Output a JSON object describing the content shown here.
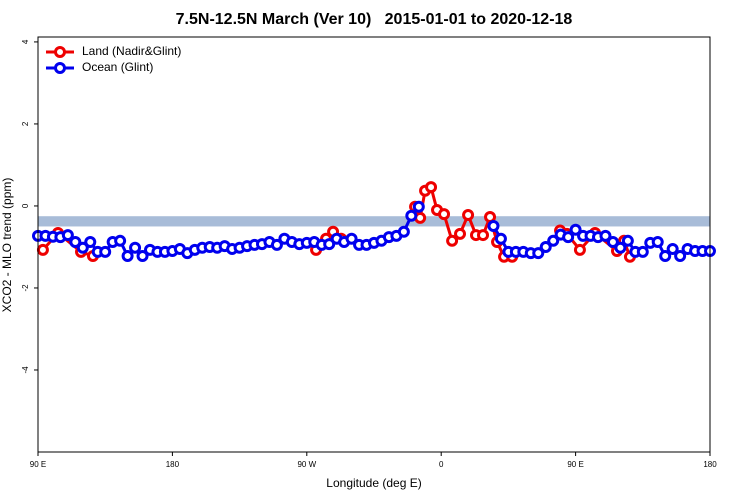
{
  "chart_data": {
    "type": "line",
    "title": "7.5N-12.5N March (Ver 10)   2015-01-01 to 2020-12-18",
    "x_label": "Longitude (deg E)",
    "y_label": "XCO2 - MLO trend (ppm)",
    "xlim": [
      90,
      540
    ],
    "xticks": [
      {
        "value": 90,
        "label": "90 E"
      },
      {
        "value": 180,
        "label": "180"
      },
      {
        "value": 270,
        "label": "90 W"
      },
      {
        "value": 360,
        "label": "0"
      },
      {
        "value": 450,
        "label": "90 E"
      },
      {
        "value": 540,
        "label": "180"
      }
    ],
    "ylim": [
      -6,
      4.12
    ],
    "yticks": [
      4,
      2,
      0,
      -2,
      -4
    ],
    "band": {
      "y": [
        -0.5,
        -0.25
      ],
      "color": "#a8bcd8"
    },
    "legend": "top-left",
    "series": [
      {
        "name": "Land (Nadir&Glint)",
        "color": "#ee0000",
        "x": [
          93.3,
          103.4,
          118.8,
          126.8,
          null,
          276.2,
          282.9,
          287.6,
          293,
          null,
          342.5,
          345.9,
          349.2,
          353.2,
          357.2,
          361.9,
          367.3,
          372.6,
          378,
          383.3,
          388,
          392.7,
          397.4,
          402.1,
          407.5,
          null,
          439.6,
          444.2,
          452.9,
          463,
          477.7,
          482.4,
          486.4
        ],
        "values": [
          -1.07,
          -0.66,
          -1.12,
          -1.22,
          null,
          -1.07,
          -0.8,
          -0.63,
          -0.8,
          null,
          -0.02,
          -0.29,
          0.37,
          0.46,
          -0.1,
          -0.2,
          -0.85,
          -0.68,
          -0.22,
          -0.71,
          -0.71,
          -0.27,
          -0.88,
          -1.24,
          -1.24,
          null,
          -0.6,
          -0.68,
          -1.07,
          -0.66,
          -1.1,
          -0.85,
          -1.24
        ]
      },
      {
        "name": "Ocean (Glint)",
        "color": "#0000ee",
        "x": [
          90,
          95,
          100,
          105,
          110,
          115,
          120,
          125,
          130,
          135,
          140,
          145,
          150,
          155,
          160,
          165,
          170,
          175,
          180,
          185,
          190,
          195,
          200,
          205,
          210,
          215,
          220,
          225,
          230,
          235,
          240,
          245,
          250,
          255,
          260,
          265,
          270,
          275,
          280,
          285,
          290,
          295,
          300,
          305,
          310,
          315,
          320,
          325,
          330,
          335,
          340,
          345,
          350,
          355,
          360,
          365,
          370,
          375,
          380,
          385,
          390,
          395,
          400,
          405,
          410,
          415,
          420,
          425,
          430,
          435,
          440,
          445,
          450,
          455,
          460,
          465,
          470,
          475,
          480,
          485,
          490,
          495,
          500,
          505,
          510,
          515,
          520,
          525,
          530,
          535,
          540
        ],
        "values": [
          -0.73,
          -0.73,
          -0.75,
          -0.76,
          -0.71,
          -0.88,
          -1.02,
          -0.88,
          -1.12,
          -1.12,
          -0.88,
          -0.85,
          -1.22,
          -1.02,
          -1.22,
          -1.07,
          -1.12,
          -1.12,
          -1.1,
          -1.05,
          -1.15,
          -1.07,
          -1.02,
          -1.0,
          -1.02,
          -0.98,
          -1.05,
          -1.02,
          -0.98,
          -0.95,
          -0.93,
          -0.88,
          -0.95,
          -0.8,
          -0.88,
          -0.93,
          -0.9,
          -0.88,
          -0.95,
          -0.93,
          -0.8,
          -0.88,
          -0.8,
          -0.95,
          -0.95,
          -0.9,
          -0.85,
          -0.76,
          -0.73,
          -0.63,
          -0.24,
          -0.02,
          null,
          null,
          null,
          null,
          null,
          null,
          null,
          null,
          null,
          -0.49,
          -0.8,
          -1.12,
          -1.12,
          -1.12,
          -1.15,
          -1.15,
          -1.0,
          -0.85,
          -0.7,
          -0.76,
          -0.58,
          -0.73,
          -0.73,
          -0.76,
          -0.73,
          -0.88,
          -1.02,
          -0.85,
          -1.12,
          -1.12,
          -0.9,
          -0.88,
          -1.22,
          -1.05,
          -1.22,
          -1.05,
          -1.1,
          -1.1,
          -1.1
        ]
      }
    ]
  }
}
